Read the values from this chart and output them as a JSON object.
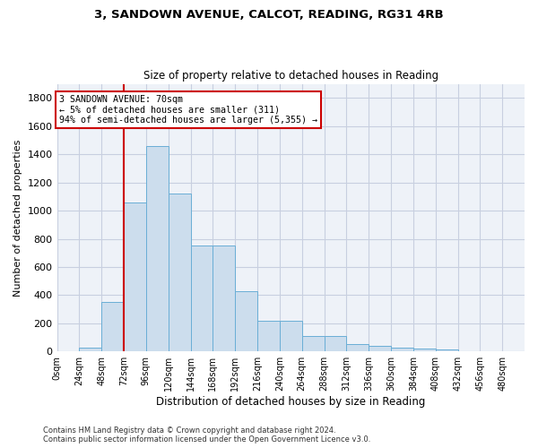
{
  "title1": "3, SANDOWN AVENUE, CALCOT, READING, RG31 4RB",
  "title2": "Size of property relative to detached houses in Reading",
  "xlabel": "Distribution of detached houses by size in Reading",
  "ylabel": "Number of detached properties",
  "bar_values": [
    0,
    30,
    350,
    1060,
    1460,
    1120,
    750,
    750,
    430,
    220,
    220,
    110,
    110,
    50,
    40,
    30,
    20,
    15,
    5,
    2,
    0
  ],
  "bin_starts": [
    0,
    24,
    48,
    72,
    96,
    120,
    144,
    168,
    192,
    216,
    240,
    264,
    288,
    312,
    336,
    360,
    384,
    408,
    432,
    456,
    480
  ],
  "bin_width": 24,
  "bar_color": "#ccdded",
  "bar_edge_color": "#6aaed6",
  "vline_x": 72,
  "vline_color": "#cc0000",
  "annotation_lines": [
    "3 SANDOWN AVENUE: 70sqm",
    "← 5% of detached houses are smaller (311)",
    "94% of semi-detached houses are larger (5,355) →"
  ],
  "annotation_box_color": "#ffffff",
  "annotation_box_edge_color": "#cc0000",
  "ylim": [
    0,
    1900
  ],
  "yticks": [
    0,
    200,
    400,
    600,
    800,
    1000,
    1200,
    1400,
    1600,
    1800
  ],
  "xtick_labels": [
    "0sqm",
    "24sqm",
    "48sqm",
    "72sqm",
    "96sqm",
    "120sqm",
    "144sqm",
    "168sqm",
    "192sqm",
    "216sqm",
    "240sqm",
    "264sqm",
    "288sqm",
    "312sqm",
    "336sqm",
    "360sqm",
    "384sqm",
    "408sqm",
    "432sqm",
    "456sqm",
    "480sqm"
  ],
  "footnote1": "Contains HM Land Registry data © Crown copyright and database right 2024.",
  "footnote2": "Contains public sector information licensed under the Open Government Licence v3.0.",
  "grid_color": "#c8cfe0",
  "plot_bg_color": "#eef2f8"
}
